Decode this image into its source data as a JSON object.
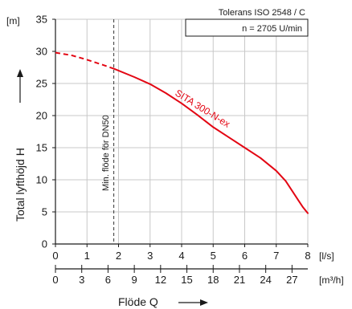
{
  "chart_data": {
    "type": "line",
    "title": "",
    "tolerance_label": "Tolerans ISO 2548 / C",
    "speed_label": "n = 2705 U/min",
    "min_flow_label": "Min. flöde för DN50",
    "min_flow_x": 1.85,
    "series_label": "SITA 300-N-ex",
    "xlabel": "Flöde  Q",
    "ylabel": "Total lyfthöjd  H",
    "y_unit": "[m]",
    "x_unit": "[l/s]",
    "x2_unit": "[m³/h]",
    "xlim": [
      0,
      8
    ],
    "ylim": [
      0,
      35
    ],
    "x_ticks": [
      "0",
      "1",
      "2",
      "3",
      "4",
      "5",
      "6",
      "7",
      "8"
    ],
    "x2_ticks": [
      "0",
      "3",
      "6",
      "9",
      "12",
      "15",
      "18",
      "21",
      "24",
      "27"
    ],
    "x2_tick_values": [
      0,
      3,
      6,
      9,
      12,
      15,
      18,
      21,
      24,
      27
    ],
    "y_ticks": [
      "0",
      "5",
      "10",
      "15",
      "20",
      "25",
      "30",
      "35"
    ],
    "grid": true,
    "colors": {
      "curve": "#e30613",
      "grid": "#c8c8c8",
      "axis": "#1a1a1a"
    },
    "series": [
      {
        "name": "SITA 300-N-ex",
        "dashed_x": [
          0,
          0.5,
          1.0,
          1.5,
          1.85
        ],
        "dashed_y": [
          29.8,
          29.4,
          28.7,
          27.9,
          27.3
        ],
        "solid_x": [
          1.85,
          2.5,
          3.0,
          3.5,
          4.0,
          4.5,
          5.0,
          5.5,
          6.0,
          6.5,
          7.0,
          7.3,
          7.5,
          7.7,
          7.85,
          8.0
        ],
        "solid_y": [
          27.3,
          26.0,
          24.9,
          23.5,
          21.9,
          20.1,
          18.2,
          16.6,
          15.0,
          13.4,
          11.4,
          9.8,
          8.3,
          6.8,
          5.7,
          4.8
        ]
      }
    ]
  }
}
